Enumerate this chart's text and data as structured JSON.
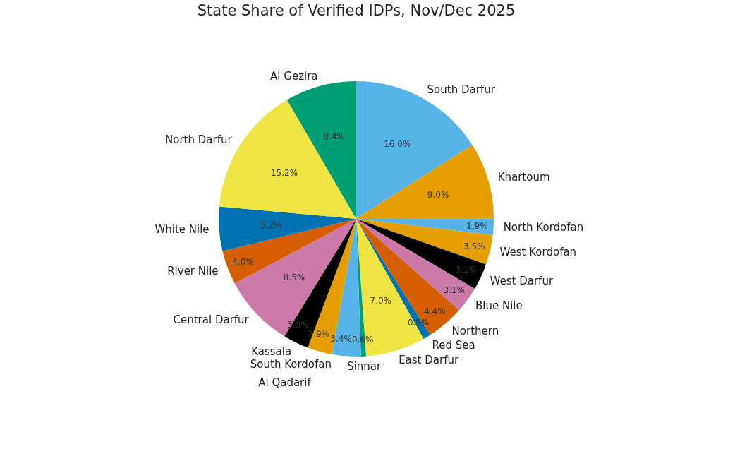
{
  "chart_data": {
    "type": "pie",
    "title": "State Share of Verified IDPs, Nov/Dec 2025",
    "categories": [
      "South Darfur",
      "Khartoum",
      "North Kordofan",
      "West Kordofan",
      "West Darfur",
      "Blue Nile",
      "Northern",
      "Red Sea",
      "East Darfur",
      "Sinnar",
      "South Kordofan",
      "Al Qadarif",
      "Kassala",
      "Central Darfur",
      "River Nile",
      "White Nile",
      "North Darfur",
      "Al Gezira"
    ],
    "values": [
      16.0,
      9.0,
      1.9,
      3.5,
      3.1,
      3.1,
      4.4,
      0.9,
      7.0,
      0.6,
      3.4,
      2.9,
      3.0,
      8.5,
      4.0,
      5.2,
      15.2,
      8.4
    ],
    "colors": [
      "#56b4e9",
      "#e69f00",
      "#56b4e9",
      "#e69f00",
      "#000000",
      "#cc79a7",
      "#d55e00",
      "#0072b2",
      "#f0e442",
      "#009e73",
      "#56b4e9",
      "#e69f00",
      "#000000",
      "#cc79a7",
      "#d55e00",
      "#0072b2",
      "#f0e442",
      "#009e73"
    ],
    "value_labels": [
      "16.0%",
      "9.0%",
      "1.9%",
      "3.5%",
      "3.1%",
      "3.1%",
      "4.4%",
      "0.9%",
      "7.0%",
      "0.6%",
      "3.4%",
      "2.9%",
      "3.0%",
      "8.5%",
      "4.0%",
      "5.2%",
      "15.2%",
      "8.4%"
    ]
  }
}
